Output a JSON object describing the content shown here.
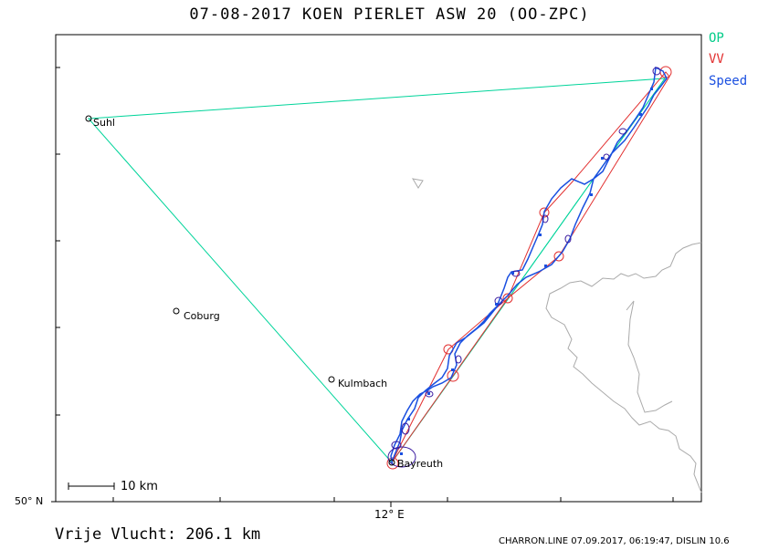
{
  "title": "07-08-2017    KOEN PIERLET    ASW 20 (OO-ZPC)",
  "legend": {
    "op": {
      "label": "OP",
      "color": "#00cc88"
    },
    "vv": {
      "label": "VV",
      "color": "#e23030"
    },
    "speed": {
      "label": "Speed",
      "color": "#1a4fe0"
    }
  },
  "axes": {
    "lat_label": "50° N",
    "lon_label": "12° E"
  },
  "scale": {
    "label": "10 km"
  },
  "cities": [
    {
      "name": "Suhl"
    },
    {
      "name": "Coburg"
    },
    {
      "name": "Kulmbach"
    },
    {
      "name": "Bayreuth"
    }
  ],
  "summary": "Vrije Vlucht:  206.1 km",
  "footer": "CHARRON.LINE 07.09.2017, 06:19:47, DISLIN 10.6",
  "colors": {
    "op_line": "#00d49a",
    "vv_line": "#e23030",
    "track": "#1a4fe0",
    "track_dark": "#3a1aa0",
    "border": "#aaaaaa"
  }
}
